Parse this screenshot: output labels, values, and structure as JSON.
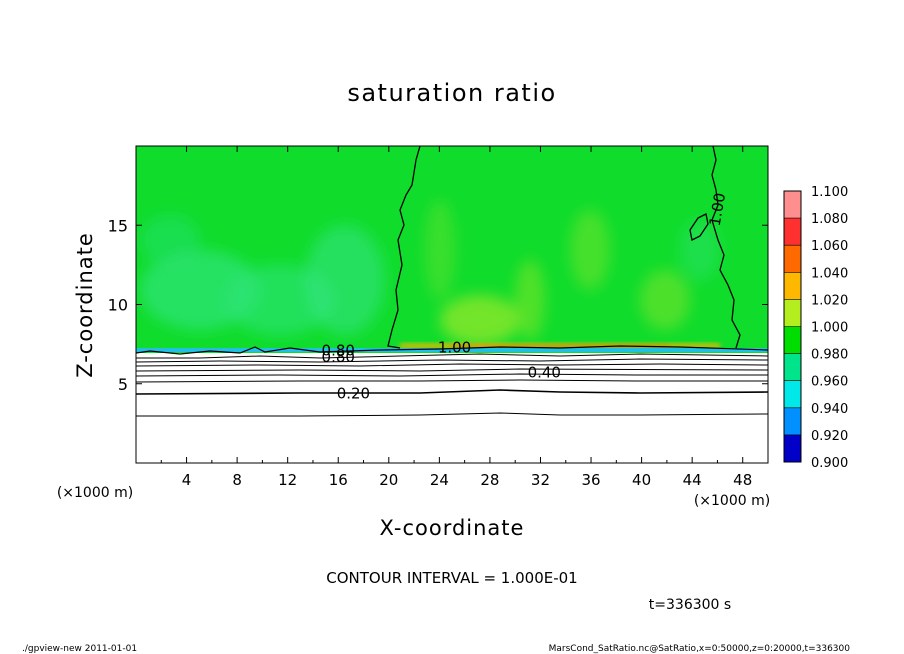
{
  "chart_data": {
    "type": "heatmap",
    "title": "saturation ratio",
    "xlabel": "X-coordinate",
    "ylabel": "Z-coordinate",
    "x_unit_left": "(×1000 m)",
    "x_unit_right": "(×1000 m)",
    "xlim": [
      0,
      50
    ],
    "ylim": [
      0,
      20
    ],
    "x_ticks": [
      4,
      8,
      12,
      16,
      20,
      24,
      28,
      32,
      36,
      40,
      44,
      48
    ],
    "y_ticks": [
      5,
      10,
      15
    ],
    "contour_interval_text": "CONTOUR INTERVAL = 1.000E-01",
    "time_text": "t=336300 s",
    "colorbar": {
      "levels": [
        "1.100",
        "1.080",
        "1.060",
        "1.040",
        "1.020",
        "1.000",
        "0.980",
        "0.960",
        "0.940",
        "0.920",
        "0.900"
      ],
      "colors": [
        "#ff8f8f",
        "#ff3030",
        "#ff6a00",
        "#ffb800",
        "#b4ee1e",
        "#00dd00",
        "#00e48c",
        "#00e8e8",
        "#0090ff",
        "#0000c8",
        "#6a00a8"
      ]
    },
    "contours": [
      {
        "label": "0.20",
        "level": 0.2,
        "z": 4.4
      },
      {
        "label": "0.40",
        "level": 0.4,
        "z": 5.7
      },
      {
        "label": "0.80",
        "level": 0.8,
        "z": 6.7
      },
      {
        "label": "0.80",
        "level": 0.8,
        "z": 7.1
      },
      {
        "label": "1.00",
        "level": 1.0,
        "z": 7.3
      },
      {
        "label": "1.00",
        "level": 1.0,
        "z": 17
      }
    ],
    "label_positions": [
      {
        "text": "0.20",
        "x": 17.2,
        "z": 4.4
      },
      {
        "text": "0.40",
        "x": 32.3,
        "z": 5.7
      },
      {
        "text": "0.80",
        "x": 16.0,
        "z": 6.7
      },
      {
        "text": "0.80",
        "x": 16.0,
        "z": 7.1
      },
      {
        "text": "1.00",
        "x": 25.2,
        "z": 7.3
      },
      {
        "text": "1.00",
        "x": 46.0,
        "z": 16.0
      }
    ]
  },
  "footer": {
    "left": "./gpview-new  2011-01-01",
    "right": "MarsCond_SatRatio.nc@SatRatio,x=0:50000,z=0:20000,t=336300"
  }
}
